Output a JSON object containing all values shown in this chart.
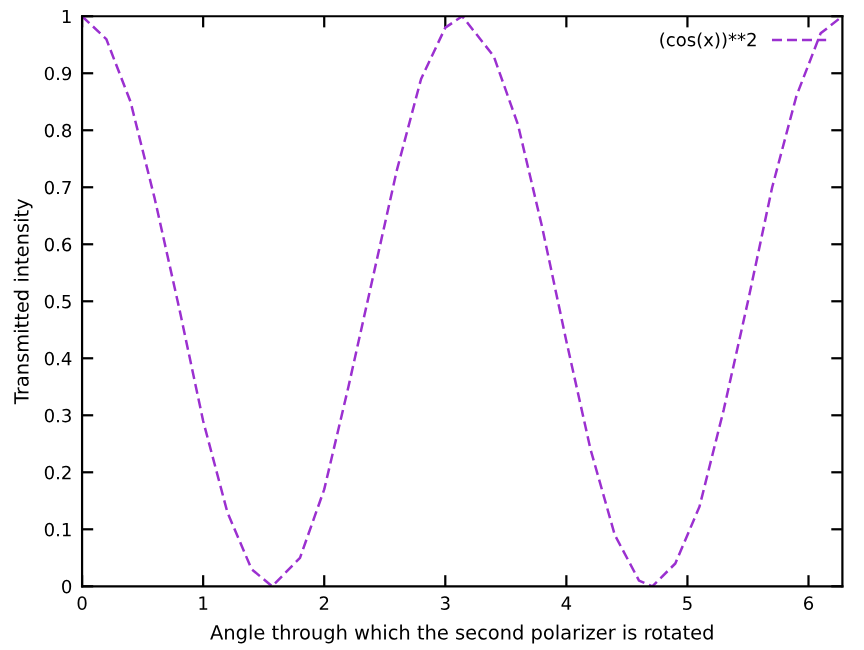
{
  "chart_data": {
    "type": "line",
    "xlabel": "Angle through which the second polarizer is rotated",
    "ylabel": "Transmitted intensity",
    "series": [
      {
        "name": "(cos(x))**2",
        "color": "#9b30d0",
        "line_style": "dashed",
        "x": [
          0,
          0.2,
          0.4,
          0.6,
          0.8,
          1.0,
          1.2,
          1.4,
          1.57,
          1.8,
          2.0,
          2.2,
          2.4,
          2.6,
          2.8,
          3.0,
          3.14,
          3.4,
          3.6,
          3.8,
          4.0,
          4.2,
          4.4,
          4.6,
          4.71,
          4.9,
          5.1,
          5.3,
          5.5,
          5.7,
          5.9,
          6.1,
          6.28
        ],
        "values": [
          1.0,
          0.96,
          0.85,
          0.68,
          0.49,
          0.29,
          0.13,
          0.03,
          0.0,
          0.05,
          0.17,
          0.35,
          0.54,
          0.73,
          0.89,
          0.98,
          1.0,
          0.93,
          0.81,
          0.63,
          0.43,
          0.24,
          0.09,
          0.01,
          0.0,
          0.04,
          0.14,
          0.31,
          0.5,
          0.7,
          0.86,
          0.97,
          1.0
        ]
      }
    ],
    "xlim": [
      0,
      6.28
    ],
    "xticks": [
      0,
      1,
      2,
      3,
      4,
      5,
      6
    ],
    "ylim": [
      0,
      1
    ],
    "yticks": [
      0,
      0.1,
      0.2,
      0.3,
      0.4,
      0.5,
      0.6,
      0.7,
      0.8,
      0.9,
      1
    ],
    "legend": "top right",
    "grid": false
  }
}
